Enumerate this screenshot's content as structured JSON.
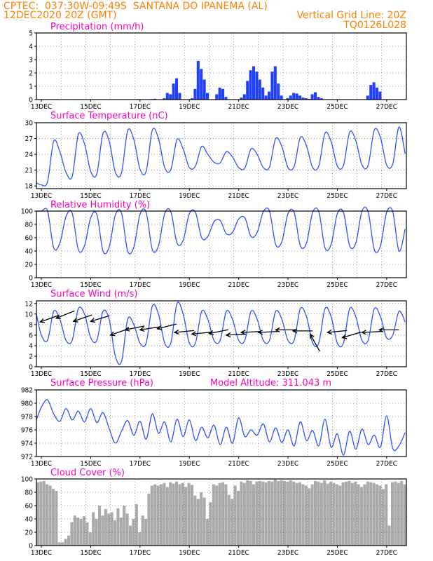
{
  "header": {
    "line1_left": "CPTEC:  037:30W-09:49S  SANTANA DO IPANEMA (AL)",
    "line2_left": "12DEC2020 20Z (GMT)",
    "line2_right": "Vertical Grid Line: 20Z",
    "line3_right": "TQ0126L028"
  },
  "x_axis": {
    "start": "12DEC2020 20Z",
    "end": "27DEC2020 20Z",
    "tick_labels": [
      "13DEC",
      "15DEC",
      "17DEC",
      "19DEC",
      "21DEC",
      "23DEC",
      "25DEC",
      "27DEC"
    ],
    "tick_days": [
      0.2,
      2.2,
      4.2,
      6.2,
      8.2,
      10.2,
      12.2,
      14.2
    ],
    "vertical_grid_days": [
      1,
      2,
      3,
      4,
      5,
      6,
      7,
      8,
      9,
      10,
      11,
      12,
      13,
      14
    ]
  },
  "colors": {
    "series": "#3050ff",
    "precip_bars": "#2040ff",
    "cloud_bars": "#aaaaaa",
    "header": "#ff8000",
    "titles": "#ff00c0",
    "wind_arrows": "#000000"
  },
  "chart_data": [
    {
      "type": "bar",
      "id": "precipitation",
      "title": "Precipitation (mm/h)",
      "ylim": [
        0,
        5
      ],
      "yticks": [
        0,
        1,
        2,
        3,
        4,
        5
      ],
      "time_start_day": 0,
      "step_days": 0.125,
      "values": [
        0,
        0,
        0,
        0,
        0,
        0,
        0,
        0,
        0,
        0,
        0,
        0,
        0,
        0,
        0,
        0,
        0,
        0,
        0,
        0,
        0,
        0,
        0,
        0,
        0,
        0,
        0,
        0,
        0,
        0,
        0,
        0,
        0,
        0,
        0,
        0,
        0,
        0.04,
        0.06,
        0,
        0,
        0.1,
        0.5,
        0.4,
        1.2,
        1.6,
        0.5,
        0,
        0,
        0,
        0.1,
        0.8,
        2.9,
        2.3,
        1.5,
        0.5,
        0,
        0,
        0.4,
        0.9,
        0.8,
        0.2,
        0,
        0,
        0,
        0,
        0.15,
        0.4,
        1.4,
        2.2,
        2.5,
        2.1,
        1.5,
        0.9,
        0.3,
        0.6,
        2.1,
        2.5,
        1.2,
        0.3,
        0,
        0.1,
        0.3,
        0.5,
        0.45,
        0.3,
        0.15,
        0.1,
        0.05,
        0.4,
        0.55,
        0.2,
        0.1,
        0,
        0,
        0,
        0,
        0,
        0,
        0,
        0,
        0,
        0,
        0,
        0,
        0,
        0,
        0.3,
        1.1,
        1.3,
        0.9,
        0.6,
        0,
        0,
        0,
        0,
        0,
        0
      ]
    },
    {
      "type": "line",
      "id": "surface_temperature",
      "title": "Surface Temperature (nC)",
      "ylim": [
        17.5,
        30
      ],
      "yticks": [
        18,
        21,
        24,
        27,
        30
      ],
      "x_days": [
        0,
        0.2,
        0.45,
        0.7,
        0.95,
        1.2,
        1.45,
        1.7,
        1.95,
        2.2,
        2.45,
        2.7,
        2.95,
        3.2,
        3.45,
        3.7,
        3.95,
        4.2,
        4.45,
        4.7,
        4.95,
        5.2,
        5.45,
        5.7,
        5.95,
        6.2,
        6.45,
        6.7,
        6.95,
        7.2,
        7.45,
        7.7,
        7.95,
        8.2,
        8.45,
        8.7,
        8.95,
        9.2,
        9.45,
        9.7,
        9.95,
        10.2,
        10.45,
        10.7,
        10.95,
        11.2,
        11.45,
        11.7,
        11.95,
        12.2,
        12.45,
        12.7,
        12.95,
        13.2,
        13.45,
        13.7,
        13.95,
        14.2,
        14.45,
        14.7,
        14.95
      ],
      "values": [
        18.6,
        18.2,
        18.8,
        26.5,
        24.5,
        20.6,
        19.8,
        27.8,
        26,
        20.8,
        20.3,
        28,
        26.5,
        20.6,
        20.5,
        28.5,
        26.8,
        21.2,
        20.8,
        28.6,
        27,
        21.5,
        21.1,
        26.8,
        25,
        21.5,
        21.8,
        25.5,
        24,
        22.5,
        22.4,
        24.5,
        23.5,
        21.5,
        21.4,
        25,
        24,
        21.5,
        21.6,
        27,
        25.5,
        21.5,
        21.7,
        27.2,
        25.6,
        21.5,
        21.8,
        28,
        26.4,
        21.8,
        21.9,
        28.2,
        26.6,
        22.0,
        21.9,
        28.6,
        27.2,
        22.0,
        22.2,
        29.2,
        24.1
      ]
    },
    {
      "type": "line",
      "id": "relative_humidity",
      "title": "Relative Humidity (%)",
      "ylim": [
        0,
        100
      ],
      "yticks": [
        0,
        20,
        40,
        60,
        80,
        100
      ],
      "x_days": [
        0,
        0.2,
        0.45,
        0.7,
        0.95,
        1.2,
        1.45,
        1.7,
        1.95,
        2.2,
        2.45,
        2.7,
        2.95,
        3.2,
        3.45,
        3.7,
        3.95,
        4.2,
        4.45,
        4.7,
        4.95,
        5.2,
        5.45,
        5.7,
        5.95,
        6.2,
        6.45,
        6.7,
        6.95,
        7.2,
        7.45,
        7.7,
        7.95,
        8.2,
        8.45,
        8.7,
        8.95,
        9.2,
        9.45,
        9.7,
        9.95,
        10.2,
        10.45,
        10.7,
        10.95,
        11.2,
        11.45,
        11.7,
        11.95,
        12.2,
        12.45,
        12.7,
        12.95,
        13.2,
        13.45,
        13.7,
        13.95,
        14.2,
        14.45,
        14.7,
        14.95
      ],
      "values": [
        100,
        100,
        100,
        45,
        52,
        92,
        97,
        42,
        48,
        90,
        95,
        40,
        46,
        94,
        97,
        40,
        46,
        95,
        98,
        42,
        48,
        96,
        99,
        52,
        56,
        96,
        98,
        60,
        62,
        84,
        86,
        66,
        68,
        88,
        90,
        62,
        68,
        99,
        100,
        50,
        54,
        96,
        98,
        48,
        52,
        98,
        99,
        45,
        50,
        96,
        98,
        48,
        52,
        100,
        99,
        42,
        48,
        98,
        99,
        40,
        73
      ]
    },
    {
      "type": "line",
      "id": "surface_wind",
      "title": "Surface Wind (m/s)",
      "ylim": [
        0,
        12.5
      ],
      "yticks": [
        0,
        2,
        4,
        6,
        8,
        10,
        12
      ],
      "x_days": [
        0,
        0.2,
        0.45,
        0.7,
        0.95,
        1.2,
        1.45,
        1.7,
        1.95,
        2.2,
        2.45,
        2.7,
        2.95,
        3.2,
        3.45,
        3.7,
        3.95,
        4.2,
        4.45,
        4.7,
        4.95,
        5.2,
        5.45,
        5.7,
        5.95,
        6.2,
        6.45,
        6.7,
        6.95,
        7.2,
        7.45,
        7.7,
        7.95,
        8.2,
        8.45,
        8.7,
        8.95,
        9.2,
        9.45,
        9.7,
        9.95,
        10.2,
        10.45,
        10.7,
        10.95,
        11.2,
        11.45,
        11.7,
        11.95,
        12.2,
        12.45,
        12.7,
        12.95,
        13.2,
        13.45,
        13.7,
        13.95,
        14.2,
        14.45,
        14.7,
        14.95
      ],
      "values": [
        10,
        6,
        5,
        10.5,
        9,
        5,
        5,
        11,
        10,
        5.5,
        5,
        10.5,
        9,
        2,
        1,
        9,
        8,
        4.5,
        4.5,
        11.5,
        10,
        4.5,
        4.5,
        12,
        10,
        4.5,
        4.5,
        10.5,
        9,
        5,
        5,
        10.5,
        9,
        5,
        5,
        10.5,
        9,
        5,
        5,
        10.5,
        9,
        5,
        5,
        11,
        9.5,
        4.5,
        4.5,
        11,
        9.5,
        4.5,
        4.5,
        11,
        9.5,
        5,
        5,
        11,
        9.5,
        5.5,
        6,
        10.5,
        8.5
      ],
      "arrows": [
        {
          "day": 0.15,
          "speed": 8.5,
          "dx": 1.0,
          "dy": -0.35
        },
        {
          "day": 0.8,
          "speed": 9.2,
          "dx": 1.0,
          "dy": -0.4
        },
        {
          "day": 1.5,
          "speed": 8.6,
          "dx": 1.0,
          "dy": -0.35
        },
        {
          "day": 2.2,
          "speed": 8.6,
          "dx": 1.0,
          "dy": -0.3
        },
        {
          "day": 3.0,
          "speed": 6.0,
          "dx": 1.0,
          "dy": -0.35
        },
        {
          "day": 3.6,
          "speed": 7.0,
          "dx": 1.0,
          "dy": -0.2
        },
        {
          "day": 4.2,
          "speed": 7.0,
          "dx": 1.0,
          "dy": -0.15
        },
        {
          "day": 4.9,
          "speed": 7.2,
          "dx": 1.0,
          "dy": -0.25
        },
        {
          "day": 5.6,
          "speed": 6.5,
          "dx": 1.0,
          "dy": -0.1
        },
        {
          "day": 6.3,
          "speed": 6.2,
          "dx": 1.0,
          "dy": -0.1
        },
        {
          "day": 7.0,
          "speed": 6.3,
          "dx": 1.0,
          "dy": -0.2
        },
        {
          "day": 7.7,
          "speed": 6.0,
          "dx": 1.0,
          "dy": -0.05
        },
        {
          "day": 8.3,
          "speed": 6.5,
          "dx": 1.0,
          "dy": -0.05
        },
        {
          "day": 9.0,
          "speed": 6.5,
          "dx": 1.0,
          "dy": -0.05
        },
        {
          "day": 9.7,
          "speed": 7.0,
          "dx": 1.0,
          "dy": 0.0
        },
        {
          "day": 10.4,
          "speed": 6.8,
          "dx": 1.0,
          "dy": 0.0
        },
        {
          "day": 11.1,
          "speed": 6.2,
          "dx": 0.5,
          "dy": 0.9
        },
        {
          "day": 11.8,
          "speed": 6.5,
          "dx": 1.0,
          "dy": -0.1
        },
        {
          "day": 12.4,
          "speed": 5.5,
          "dx": 1.0,
          "dy": -0.3
        },
        {
          "day": 13.2,
          "speed": 6.5,
          "dx": 1.0,
          "dy": -0.05
        },
        {
          "day": 13.9,
          "speed": 7.0,
          "dx": 1.0,
          "dy": 0.0
        }
      ]
    },
    {
      "type": "line",
      "id": "surface_pressure",
      "title": "Surface Pressure (hPa)",
      "annotation": "Model Altitude: 311.043 m",
      "ylim": [
        972,
        982
      ],
      "yticks": [
        972,
        974,
        976,
        978,
        980,
        982
      ],
      "x_days": [
        0,
        0.2,
        0.45,
        0.7,
        0.95,
        1.2,
        1.45,
        1.7,
        1.95,
        2.2,
        2.45,
        2.7,
        2.95,
        3.2,
        3.45,
        3.7,
        3.95,
        4.2,
        4.45,
        4.7,
        4.95,
        5.2,
        5.45,
        5.7,
        5.95,
        6.2,
        6.45,
        6.7,
        6.95,
        7.2,
        7.45,
        7.7,
        7.95,
        8.2,
        8.45,
        8.7,
        8.95,
        9.2,
        9.45,
        9.7,
        9.95,
        10.2,
        10.45,
        10.7,
        10.95,
        11.2,
        11.45,
        11.7,
        11.95,
        12.2,
        12.45,
        12.7,
        12.95,
        13.2,
        13.45,
        13.7,
        13.95,
        14.2,
        14.45,
        14.7,
        14.95
      ],
      "values": [
        977.5,
        979.4,
        980.5,
        978.4,
        977.3,
        979.2,
        977.5,
        978.8,
        977.2,
        979.2,
        977.1,
        978.6,
        976.2,
        974.0,
        975.8,
        977.4,
        975.2,
        977.3,
        974.6,
        978.4,
        975.5,
        977.2,
        974.2,
        977.6,
        975.0,
        977.5,
        974.4,
        976.4,
        974.8,
        976.7,
        973.8,
        976.4,
        974.0,
        977.8,
        975.0,
        976.0,
        975.2,
        976.9,
        974.2,
        976.3,
        974.1,
        976.0,
        973.6,
        977.2,
        974.4,
        975.9,
        973.6,
        977.6,
        973.4,
        975.4,
        972.2,
        975.8,
        973.1,
        976.1,
        973.8,
        975.2,
        973.4,
        978.1,
        973.2,
        973.6,
        975.6
      ]
    },
    {
      "type": "bar",
      "id": "cloud_cover",
      "title": "Cloud Cover (%)",
      "ylim": [
        0,
        100
      ],
      "yticks": [
        0,
        20,
        40,
        60,
        80,
        100
      ],
      "time_start_day": 0,
      "step_days": 0.125,
      "values": [
        95,
        96,
        97,
        92,
        90,
        85,
        82,
        5,
        5,
        10,
        15,
        35,
        45,
        42,
        40,
        44,
        35,
        20,
        50,
        40,
        60,
        45,
        55,
        48,
        50,
        38,
        56,
        42,
        60,
        48,
        30,
        40,
        62,
        20,
        45,
        40,
        78,
        90,
        92,
        90,
        92,
        94,
        88,
        95,
        93,
        96,
        92,
        94,
        88,
        94,
        91,
        75,
        70,
        80,
        72,
        40,
        65,
        92,
        90,
        94,
        95,
        92,
        76,
        70,
        90,
        82,
        96,
        94,
        98,
        97,
        92,
        96,
        97,
        96,
        95,
        97,
        96,
        99,
        97,
        98,
        97,
        96,
        98,
        96,
        94,
        95,
        92,
        90,
        86,
        92,
        97,
        96,
        94,
        98,
        93,
        96,
        94,
        92,
        90,
        95,
        96,
        97,
        94,
        96,
        92,
        88,
        92,
        96,
        95,
        94,
        92,
        90,
        85,
        92,
        30,
        95,
        96,
        94,
        97,
        92,
        96,
        95,
        98,
        95,
        96,
        97,
        94,
        96,
        95,
        97,
        96,
        98,
        96,
        92,
        95,
        97,
        91,
        95,
        94,
        93,
        92,
        95,
        10,
        20
      ]
    }
  ]
}
